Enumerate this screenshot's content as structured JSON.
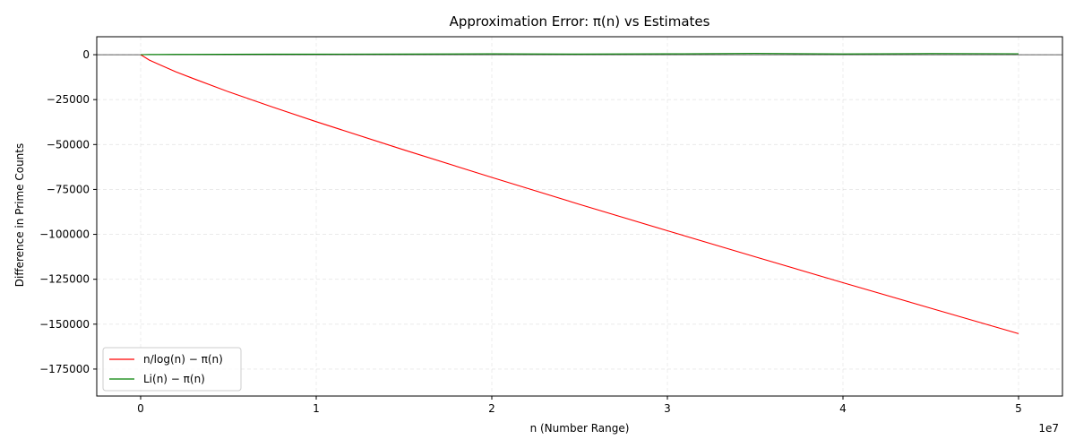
{
  "chart_data": {
    "type": "line",
    "title": "Approximation Error: π(n) vs Estimates",
    "xlabel": "n (Number Range)",
    "ylabel": "Difference in Prime Counts",
    "x_offset_label": "1e7",
    "xlim": [
      -2500000,
      52500000
    ],
    "ylim": [
      -190000,
      10000
    ],
    "x_ticks": [
      0,
      10000000,
      20000000,
      30000000,
      40000000,
      50000000
    ],
    "x_tick_labels": [
      "0",
      "1",
      "2",
      "3",
      "4",
      "5"
    ],
    "y_ticks": [
      0,
      -25000,
      -50000,
      -75000,
      -100000,
      -125000,
      -150000,
      -175000
    ],
    "y_tick_labels": [
      "0",
      "−25000",
      "−50000",
      "−75000",
      "−100000",
      "−125000",
      "−150000",
      "−175000"
    ],
    "grid": true,
    "zero_line": true,
    "legend_position": "lower-left",
    "x": [
      10,
      500000,
      1000000,
      2000000,
      3000000,
      5000000,
      7500000,
      10000000,
      15000000,
      20000000,
      25000000,
      30000000,
      35000000,
      40000000,
      45000000,
      50000000
    ],
    "series": [
      {
        "name": "n/log(n) − π(n)",
        "color": "#ff0000",
        "values": [
          0,
          -3000,
          -5200,
          -9500,
          -13300,
          -20600,
          -29100,
          -37300,
          -53000,
          -68300,
          -83300,
          -98000,
          -112500,
          -126900,
          -141100,
          -155300
        ]
      },
      {
        "name": "Li(n) − π(n)",
        "color": "#008000",
        "values": [
          0,
          100,
          130,
          180,
          190,
          240,
          300,
          340,
          390,
          470,
          380,
          460,
          690,
          440,
          600,
          530
        ]
      }
    ]
  }
}
